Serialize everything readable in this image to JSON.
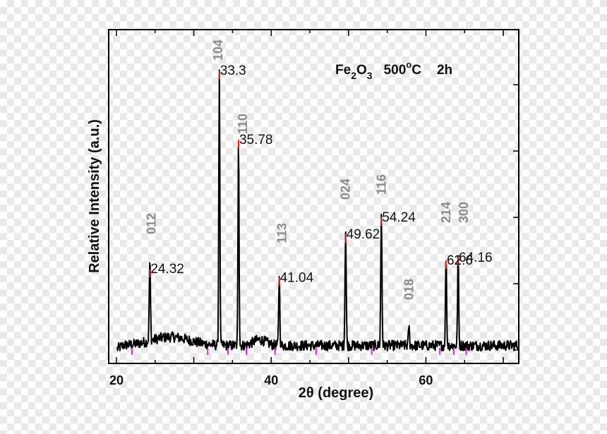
{
  "chart_data": {
    "type": "line",
    "title_parts": {
      "formula": [
        "Fe",
        "2",
        "O",
        "3"
      ],
      "temperature": "500",
      "degree": "o",
      "temperature_unit": "C",
      "duration": "2h"
    },
    "xlabel": "2θ (degree)",
    "ylabel": "Relative Intensity (a.u.)",
    "xlim": [
      19,
      72
    ],
    "x_ticks": [
      20,
      40,
      60
    ],
    "line_color": "#000000",
    "peak_mark_color": "#dd2222",
    "dip_mark_color": "#dd22dd",
    "hkl_color": "#8a8a8a",
    "peaks": [
      {
        "x": 24.32,
        "label": "24.32",
        "hkl": "012"
      },
      {
        "x": 33.3,
        "label": "33.3",
        "hkl": "104"
      },
      {
        "x": 35.78,
        "label": "35.78",
        "hkl": "110"
      },
      {
        "x": 41.04,
        "label": "41.04",
        "hkl": "113"
      },
      {
        "x": 49.62,
        "label": "49.62",
        "hkl": "024"
      },
      {
        "x": 54.24,
        "label": "54.24",
        "hkl": "116"
      },
      {
        "x": 57.8,
        "label": "",
        "hkl": "018"
      },
      {
        "x": 62.6,
        "label": "62.6",
        "hkl": "214"
      },
      {
        "x": 64.16,
        "label": "64.16",
        "hkl": "300"
      }
    ],
    "profile": [
      {
        "x": 24.32,
        "h": 0.28,
        "w": 0.18
      },
      {
        "x": 33.3,
        "h": 0.97,
        "w": 0.16
      },
      {
        "x": 35.78,
        "h": 0.73,
        "w": 0.16
      },
      {
        "x": 41.04,
        "h": 0.25,
        "w": 0.17
      },
      {
        "x": 49.62,
        "h": 0.4,
        "w": 0.18
      },
      {
        "x": 54.24,
        "h": 0.46,
        "w": 0.18
      },
      {
        "x": 57.8,
        "h": 0.07,
        "w": 0.16
      },
      {
        "x": 62.6,
        "h": 0.31,
        "w": 0.17
      },
      {
        "x": 64.16,
        "h": 0.32,
        "w": 0.16
      }
    ],
    "dips": [
      22.0,
      31.8,
      34.4,
      36.8,
      40.5,
      45.8,
      53.0,
      61.8,
      63.6,
      65.2
    ]
  }
}
